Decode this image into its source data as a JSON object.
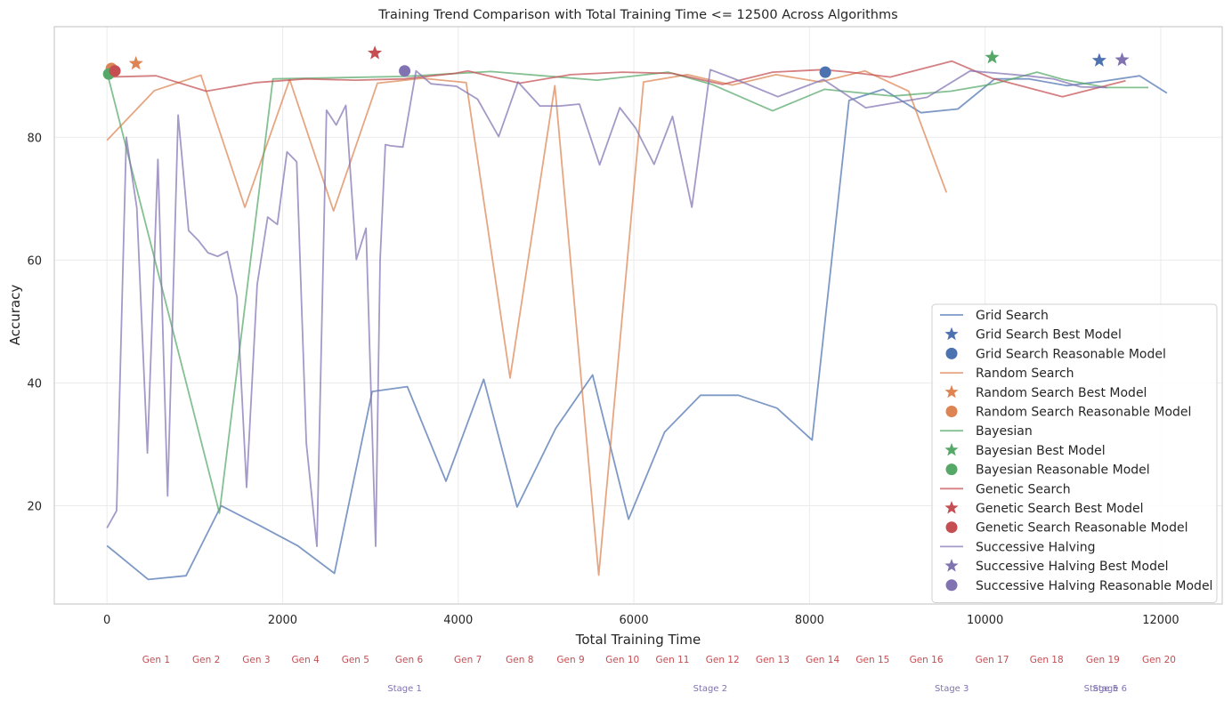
{
  "chart_data": {
    "type": "line",
    "title": "Training Trend Comparison with Total Training Time <= 12500 Across Algorithms",
    "xlabel": "Total Training Time",
    "ylabel": "Accuracy",
    "xlim": [
      -600,
      12700
    ],
    "ylim": [
      4,
      98
    ],
    "xticks": [
      0,
      2000,
      4000,
      6000,
      8000,
      10000,
      12000
    ],
    "yticks": [
      20,
      40,
      60,
      80
    ],
    "grid": true,
    "legend_position": "lower-right",
    "series": [
      {
        "name": "Grid Search",
        "color": "#4c72b0",
        "x": [
          0,
          470,
          900,
          1300,
          1750,
          2170,
          2590,
          3020,
          3420,
          3860,
          4290,
          4670,
          5110,
          5530,
          5940,
          6350,
          6760,
          7190,
          7630,
          8030,
          8450,
          8840,
          9270,
          9690,
          10110,
          10500,
          10930,
          11340,
          11760,
          12070
        ],
        "y": [
          13.5,
          8,
          8.6,
          20,
          16.7,
          13.5,
          9,
          38.6,
          39.4,
          24,
          40.6,
          19.8,
          32.6,
          41.3,
          17.8,
          32,
          38,
          38,
          35.9,
          30.7,
          86,
          87.8,
          84,
          84.6,
          89.5,
          89.5,
          88.4,
          89.1,
          90,
          87.2
        ],
        "best": {
          "label": "Grid Search Best Model",
          "x": 11300,
          "y": 92.5
        },
        "reasonable": {
          "label": "Grid Search Reasonable Model",
          "x": 8180,
          "y": 90.6
        }
      },
      {
        "name": "Random Search",
        "color": "#dd8452",
        "x": [
          0,
          540,
          1070,
          1570,
          2080,
          2580,
          3080,
          3590,
          4090,
          4590,
          5100,
          5600,
          6110,
          6610,
          7120,
          7620,
          8120,
          8630,
          9130,
          9560
        ],
        "y": [
          79.5,
          87.6,
          90.1,
          68.6,
          89.4,
          68,
          88.8,
          89.6,
          88.9,
          40.8,
          88.4,
          8.7,
          89,
          90.2,
          88.5,
          90.2,
          89,
          90.8,
          87.5,
          71
        ],
        "best": {
          "label": "Random Search Best Model",
          "x": 330,
          "y": 92
        },
        "reasonable": {
          "label": "Random Search Reasonable Model",
          "x": 50,
          "y": 91.2
        }
      },
      {
        "name": "Bayesian",
        "color": "#55a868",
        "x": [
          0,
          1280,
          1890,
          3390,
          4370,
          5580,
          6390,
          6890,
          7580,
          8170,
          8950,
          9610,
          10100,
          10590,
          10890,
          11380,
          11860
        ],
        "y": [
          90.6,
          18.8,
          89.5,
          89.9,
          90.7,
          89.3,
          90.6,
          88.6,
          84.3,
          87.8,
          86.7,
          87.5,
          88.7,
          90.6,
          89.4,
          88.1,
          88.1
        ],
        "best": {
          "label": "Bayesian Best Model",
          "x": 10080,
          "y": 93
        },
        "reasonable": {
          "label": "Bayesian Reasonable Model",
          "x": 20,
          "y": 90.3
        }
      },
      {
        "name": "Genetic Search",
        "color": "#c44e52",
        "x": [
          0,
          560,
          1130,
          1700,
          2260,
          2830,
          3390,
          3960,
          4110,
          4700,
          5280,
          5870,
          6440,
          7010,
          7580,
          8150,
          8460,
          8920,
          9620,
          10080,
          10880,
          11600
        ],
        "y": [
          89.8,
          90,
          87.5,
          88.9,
          89.5,
          89.3,
          89.5,
          90.4,
          90.8,
          88.8,
          90.2,
          90.6,
          90.4,
          88.6,
          90.6,
          91,
          90.6,
          89.8,
          92.4,
          89.6,
          86.6,
          89.2
        ],
        "best": {
          "label": "Genetic Search Best Model",
          "x": 3050,
          "y": 93.7
        },
        "reasonable": {
          "label": "Genetic Search Reasonable Model",
          "x": 90,
          "y": 90.8
        }
      },
      {
        "name": "Successive Halving",
        "color": "#8172b2",
        "x": [
          0,
          110,
          220,
          340,
          460,
          580,
          690,
          810,
          930,
          1040,
          1150,
          1260,
          1370,
          1480,
          1590,
          1710,
          1830,
          1940,
          2050,
          2160,
          2270,
          2390,
          2500,
          2610,
          2720,
          2840,
          2950,
          3060,
          3110,
          3170,
          3230,
          3370,
          3520,
          3690,
          3980,
          4220,
          4460,
          4680,
          4930,
          5160,
          5380,
          5610,
          5840,
          6020,
          6230,
          6440,
          6660,
          6870,
          7130,
          7640,
          8160,
          8640,
          9340,
          9830,
          10170,
          10480,
          10780,
          11090,
          11390
        ],
        "y": [
          16.4,
          19.2,
          80,
          68.5,
          28.6,
          76.4,
          21.6,
          83.6,
          64.8,
          63.2,
          61.2,
          60.6,
          61.4,
          54,
          23,
          56,
          67,
          65.8,
          77.6,
          76,
          30.2,
          13.4,
          84.4,
          82,
          85.2,
          60.1,
          65.2,
          13.4,
          60,
          78.8,
          78.6,
          78.4,
          90.8,
          88.7,
          88.3,
          86.2,
          80.1,
          89,
          85.1,
          85.1,
          85.4,
          75.5,
          84.8,
          81.5,
          75.6,
          83.4,
          68.6,
          91,
          89.6,
          86.6,
          89.4,
          84.8,
          86.5,
          90.8,
          90.4,
          90,
          89.5,
          88.2,
          88.1
        ],
        "best": {
          "label": "Successive Halving Best Model",
          "x": 11560,
          "y": 92.6
        },
        "reasonable": {
          "label": "Successive Halving Reasonable Model",
          "x": 3390,
          "y": 90.8
        }
      }
    ],
    "generations": [
      {
        "label": "Gen 1",
        "x": 560
      },
      {
        "label": "Gen 2",
        "x": 1130
      },
      {
        "label": "Gen 3",
        "x": 1700
      },
      {
        "label": "Gen 4",
        "x": 2260
      },
      {
        "label": "Gen 5",
        "x": 2830
      },
      {
        "label": "Gen 6",
        "x": 3440
      },
      {
        "label": "Gen 7",
        "x": 4110
      },
      {
        "label": "Gen 8",
        "x": 4700
      },
      {
        "label": "Gen 9",
        "x": 5280
      },
      {
        "label": "Gen 10",
        "x": 5870
      },
      {
        "label": "Gen 11",
        "x": 6440
      },
      {
        "label": "Gen 12",
        "x": 7010
      },
      {
        "label": "Gen 13",
        "x": 7580
      },
      {
        "label": "Gen 14",
        "x": 8150
      },
      {
        "label": "Gen 15",
        "x": 8720
      },
      {
        "label": "Gen 16",
        "x": 9330
      },
      {
        "label": "Gen 17",
        "x": 10080
      },
      {
        "label": "Gen 18",
        "x": 10700
      },
      {
        "label": "Gen 19",
        "x": 11340
      },
      {
        "label": "Gen 20",
        "x": 11980
      }
    ],
    "stages": [
      {
        "label": "Stage 1",
        "x": 3390
      },
      {
        "label": "Stage 2",
        "x": 6870
      },
      {
        "label": "Stage 3",
        "x": 9620
      },
      {
        "label": "Stage 5",
        "x": 11320
      },
      {
        "label": "Stage 6",
        "x": 11420
      }
    ]
  }
}
